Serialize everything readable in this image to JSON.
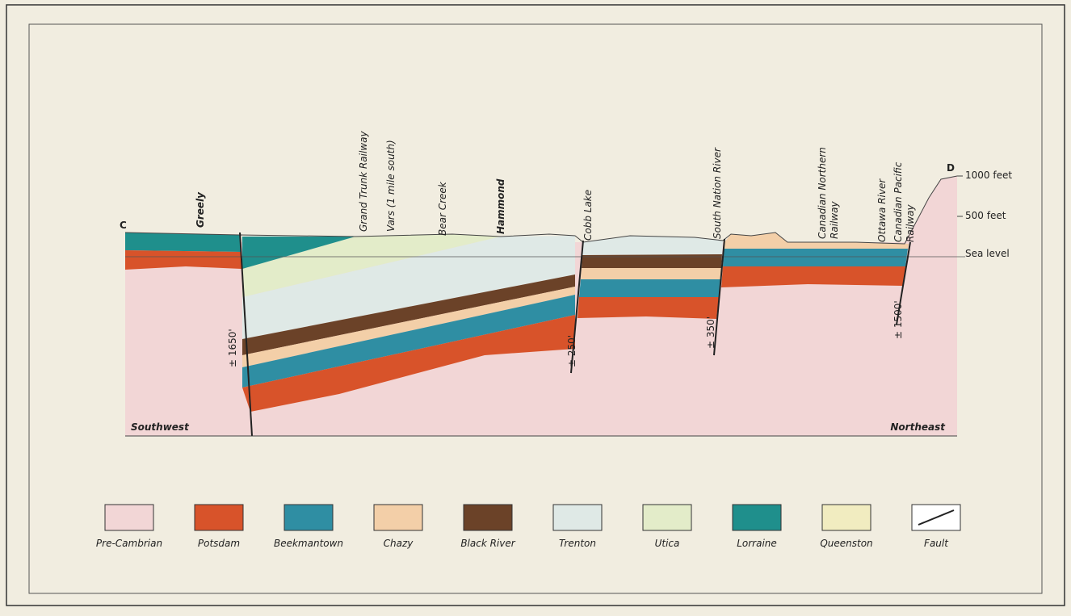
{
  "section": {
    "ends": {
      "left": "C",
      "right": "D"
    },
    "places": [
      {
        "lines": [
          "Greely"
        ],
        "bold": true
      },
      {
        "lines": [
          "Grand Trunk Railway"
        ],
        "bold": false
      },
      {
        "lines": [
          "Vars (1 mile south)"
        ],
        "bold": false
      },
      {
        "lines": [
          "Bear Creek"
        ],
        "bold": false
      },
      {
        "lines": [
          "Hammond"
        ],
        "bold": true
      },
      {
        "lines": [
          "Cobb Lake"
        ],
        "bold": false
      },
      {
        "lines": [
          "South Nation River"
        ],
        "bold": false
      },
      {
        "lines": [
          "Canadian Northern",
          "Railway"
        ],
        "bold": false
      },
      {
        "lines": [
          "Ottawa River"
        ],
        "bold": false
      },
      {
        "lines": [
          "Canadian Pacific",
          "Railway"
        ],
        "bold": false
      }
    ],
    "depths": [
      "± 1650'",
      "± 250'",
      "± 350'",
      "± 1500'"
    ],
    "scale": [
      "1000 feet",
      "500 feet",
      "Sea level"
    ],
    "directions": {
      "left": "Southwest",
      "right": "Northeast"
    }
  },
  "legend": [
    {
      "label": "Pre-Cambrian",
      "color": "#f2d6d6"
    },
    {
      "label": "Potsdam",
      "color": "#d8532a"
    },
    {
      "label": "Beekmantown",
      "color": "#2f8ea3"
    },
    {
      "label": "Chazy",
      "color": "#f3cfa8"
    },
    {
      "label": "Black River",
      "color": "#6b4228"
    },
    {
      "label": "Trenton",
      "color": "#dfe9e6"
    },
    {
      "label": "Utica",
      "color": "#e3ecc9"
    },
    {
      "label": "Lorraine",
      "color": "#1f8f8c"
    },
    {
      "label": "Queenston",
      "color": "#f1ecc0"
    },
    {
      "label": "Fault",
      "color": "none"
    }
  ]
}
